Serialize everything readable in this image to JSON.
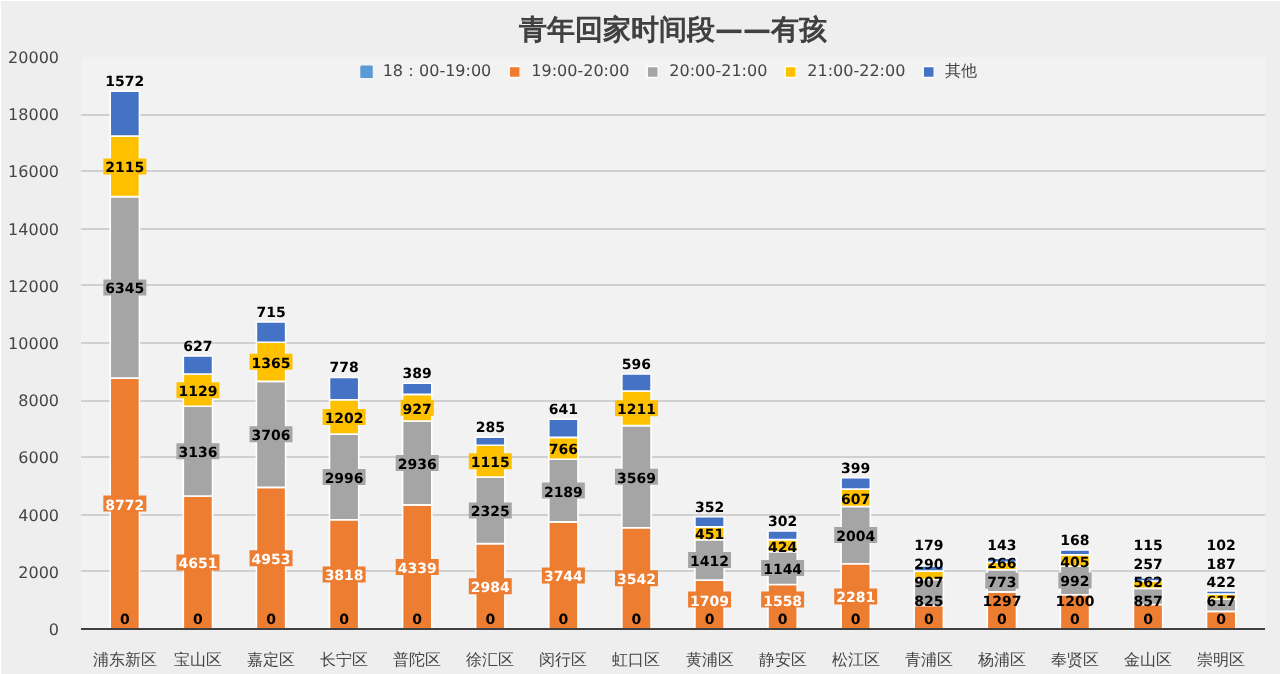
{
  "chart_data": {
    "type": "bar",
    "title": "青年回家时间段——有孩",
    "stacked": true,
    "data_labels": true,
    "grid": "y",
    "legend": "top",
    "categories": [
      "浦东新区",
      "宝山区",
      "嘉定区",
      "长宁区",
      "普陀区",
      "徐汇区",
      "闵行区",
      "虹口区",
      "黄浦区",
      "静安区",
      "松江区",
      "青浦区",
      "杨浦区",
      "奉贤区",
      "金山区",
      "崇明区"
    ],
    "ylim": [
      0,
      20000
    ],
    "yticks": [
      0,
      2000,
      4000,
      6000,
      8000,
      10000,
      12000,
      14000,
      16000,
      18000,
      20000
    ],
    "series": [
      {
        "name": "18：00-19:00",
        "color": "#5b9bd5",
        "values": [
          0,
          0,
          0,
          0,
          0,
          0,
          0,
          0,
          0,
          0,
          0,
          0,
          0,
          0,
          0,
          0
        ]
      },
      {
        "name": "19:00-20:00",
        "color": "#ed7d31",
        "values": [
          8772,
          4651,
          4953,
          3818,
          4339,
          2984,
          3744,
          3542,
          1709,
          1558,
          2281,
          825,
          1297,
          1200,
          857,
          617
        ]
      },
      {
        "name": "20:00-21:00",
        "color": "#a5a5a5",
        "values": [
          6345,
          3136,
          3706,
          2996,
          2936,
          2325,
          2189,
          3569,
          1412,
          1144,
          2004,
          907,
          773,
          992,
          562,
          422
        ]
      },
      {
        "name": "21:00-22:00",
        "color": "#ffc000",
        "values": [
          2115,
          1129,
          1365,
          1202,
          927,
          1115,
          766,
          1211,
          451,
          424,
          607,
          290,
          266,
          405,
          257,
          187
        ]
      },
      {
        "name": "其他",
        "color": "#4472c4",
        "values": [
          1572,
          627,
          715,
          778,
          389,
          285,
          641,
          596,
          352,
          302,
          399,
          179,
          143,
          168,
          115,
          102
        ]
      }
    ]
  }
}
